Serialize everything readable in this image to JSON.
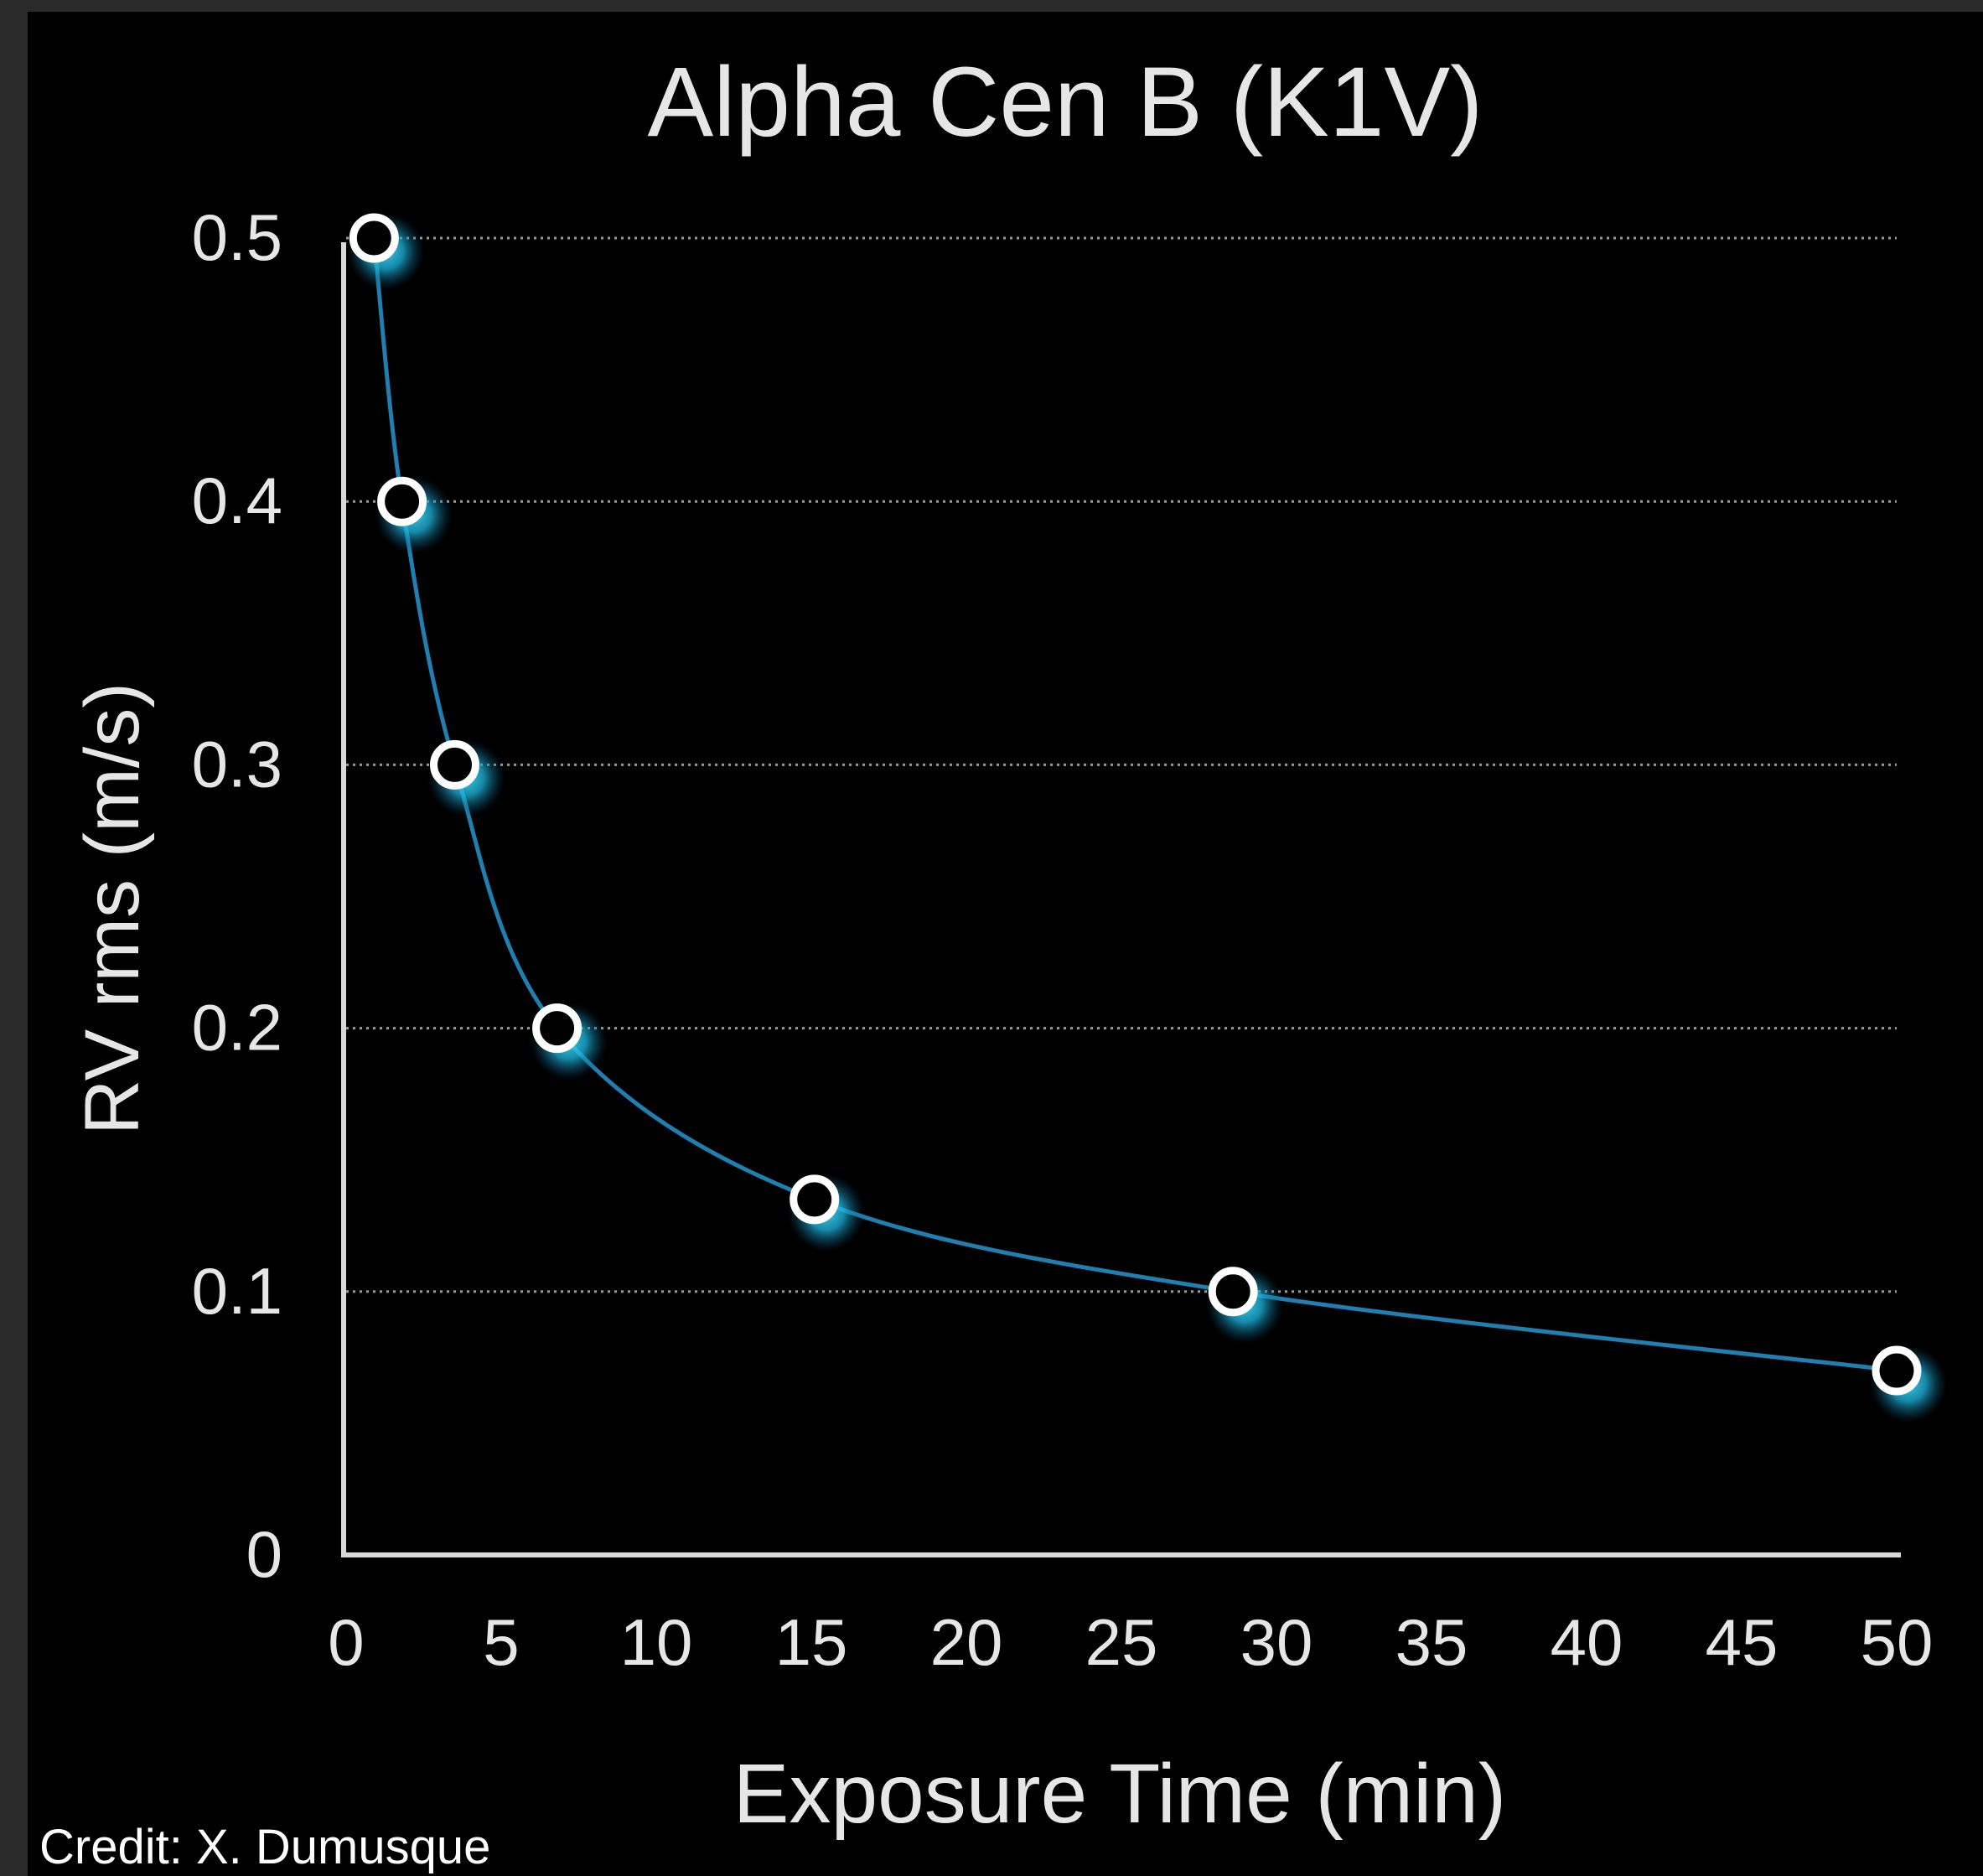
{
  "chart_data": {
    "type": "line",
    "title": "Alpha Cen B (K1V)",
    "xlabel": "Exposure Time (min)",
    "ylabel": "RV rms (m/s)",
    "xlim": [
      0,
      50
    ],
    "ylim": [
      0,
      0.5
    ],
    "x_ticks": [
      "0",
      "5",
      "10",
      "15",
      "20",
      "25",
      "30",
      "35",
      "40",
      "45",
      "50"
    ],
    "y_ticks": [
      "0",
      "0.1",
      "0.2",
      "0.3",
      "0.4",
      "0.5"
    ],
    "grid": "horizontal dotted",
    "smooth": true,
    "series": [
      {
        "x": [
          0.9,
          1.8,
          3.5,
          6.8,
          15.1,
          28.6,
          50.0
        ],
        "y": [
          0.5,
          0.4,
          0.3,
          0.2,
          0.135,
          0.1,
          0.07
        ]
      }
    ],
    "colors": {
      "background": "#000000",
      "text": "#e6e6e6",
      "axis": "#d8d8d8",
      "grid": "#9a9a9a",
      "line": "#1e7fb0",
      "marker_fill": "#000000",
      "marker_stroke": "#ffffff",
      "marker_glow": "#1fb6e0"
    }
  },
  "credit": "Credit: X. Dumusque"
}
